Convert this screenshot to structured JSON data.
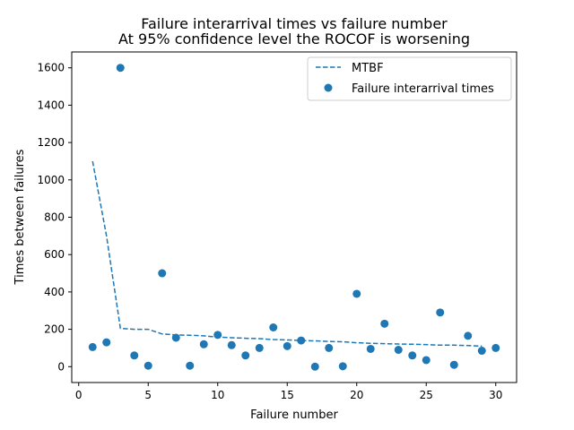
{
  "chart_data": {
    "type": "scatter",
    "title": "Failure interarrival times vs failure number",
    "subtitle": "At 95% confidence level the ROCOF is worsening",
    "xlabel": "Failure number",
    "ylabel": "Times between failures",
    "xlim": [
      -0.5,
      31.5
    ],
    "ylim": [
      -85,
      1685
    ],
    "x_ticks": [
      0,
      5,
      10,
      15,
      20,
      25,
      30
    ],
    "y_ticks": [
      0,
      200,
      400,
      600,
      800,
      1000,
      1200,
      1400,
      1600
    ],
    "legend_position": "top-right",
    "grid": false,
    "color": "#1f77b4",
    "series": [
      {
        "name": "MTBF",
        "style": "dashed-line",
        "x": [
          1,
          2,
          3,
          4,
          5,
          6,
          7,
          8,
          9,
          10,
          11,
          12,
          13,
          14,
          15,
          16,
          17,
          18,
          19,
          20,
          21,
          22,
          23,
          24,
          25,
          26,
          27,
          28,
          29
        ],
        "y": [
          1100,
          700,
          205,
          200,
          200,
          175,
          170,
          168,
          165,
          158,
          155,
          152,
          150,
          145,
          143,
          140,
          138,
          135,
          133,
          128,
          125,
          123,
          121,
          120,
          118,
          115,
          115,
          113,
          110
        ]
      },
      {
        "name": "Failure interarrival times",
        "style": "markers",
        "x": [
          1,
          2,
          3,
          4,
          5,
          6,
          7,
          8,
          9,
          10,
          11,
          12,
          13,
          14,
          15,
          16,
          17,
          18,
          19,
          20,
          21,
          22,
          23,
          24,
          25,
          26,
          27,
          28,
          29,
          30
        ],
        "y": [
          105,
          130,
          1600,
          60,
          5,
          500,
          155,
          5,
          120,
          170,
          115,
          60,
          100,
          210,
          110,
          140,
          0,
          100,
          2,
          390,
          95,
          230,
          90,
          60,
          35,
          290,
          10,
          165,
          85,
          100
        ]
      }
    ]
  }
}
